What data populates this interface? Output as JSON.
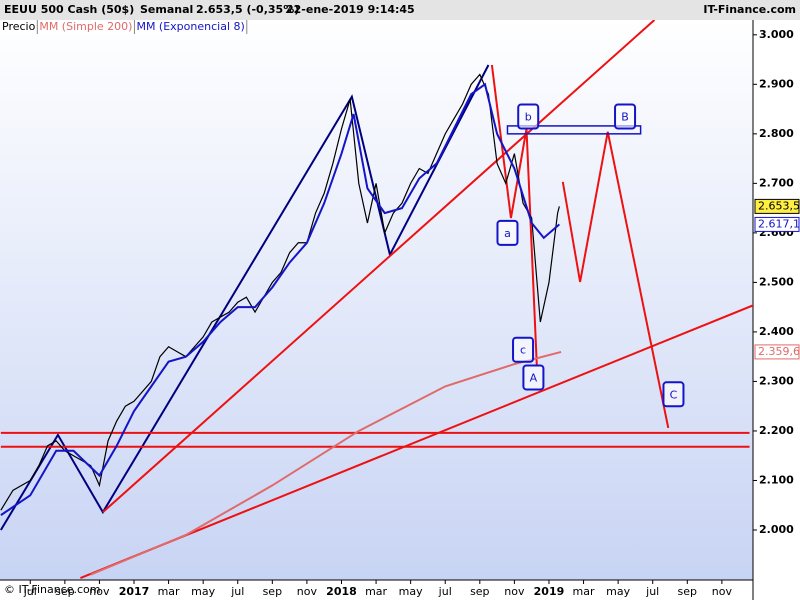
{
  "chart_data": {
    "type": "line",
    "title": "EEUU 500 Cash (50$)",
    "period": "Semanal",
    "quote": "2.653,5 (-0,35%)",
    "timestamp": "22-ene-2019 9:14:45",
    "source": "IT-Finance.com",
    "watermark": "© IT-Finance.com",
    "xlim": [
      4.25,
      47.8
    ],
    "ylim": [
      1899,
      3040
    ],
    "xticks": [
      {
        "value": 6,
        "label": "jul"
      },
      {
        "value": 8,
        "label": "sep"
      },
      {
        "value": 10,
        "label": "nov"
      },
      {
        "value": 12,
        "label": "2017"
      },
      {
        "value": 14,
        "label": "mar"
      },
      {
        "value": 16,
        "label": "may"
      },
      {
        "value": 18,
        "label": "jul"
      },
      {
        "value": 20,
        "label": "sep"
      },
      {
        "value": 22,
        "label": "nov"
      },
      {
        "value": 24,
        "label": "2018"
      },
      {
        "value": 26,
        "label": "mar"
      },
      {
        "value": 28,
        "label": "may"
      },
      {
        "value": 30,
        "label": "jul"
      },
      {
        "value": 32,
        "label": "sep"
      },
      {
        "value": 34,
        "label": "nov"
      },
      {
        "value": 36,
        "label": "2019"
      },
      {
        "value": 38,
        "label": "mar"
      },
      {
        "value": 40,
        "label": "may"
      },
      {
        "value": 42,
        "label": "jul"
      },
      {
        "value": 44,
        "label": "sep"
      },
      {
        "value": 46,
        "label": "nov"
      }
    ],
    "yticks": [
      {
        "value": 2000,
        "label": "2.000"
      },
      {
        "value": 2100,
        "label": "2.100"
      },
      {
        "value": 2200,
        "label": "2.200"
      },
      {
        "value": 2300,
        "label": "2.300"
      },
      {
        "value": 2400,
        "label": "2.400"
      },
      {
        "value": 2500,
        "label": "2.500"
      },
      {
        "value": 2600,
        "label": "2.600"
      },
      {
        "value": 2700,
        "label": "2.700"
      },
      {
        "value": 2800,
        "label": "2.800"
      },
      {
        "value": 2900,
        "label": "2.900"
      },
      {
        "value": 3000,
        "label": "3.000"
      }
    ],
    "series": [
      {
        "name": "Precio",
        "color": "#000000",
        "x": [
          4.3,
          5,
          6,
          6.5,
          7,
          7.5,
          8,
          8.5,
          9,
          9.5,
          10,
          10.5,
          11,
          11.5,
          12,
          12.5,
          13,
          13.5,
          14,
          14.5,
          15,
          15.5,
          16,
          16.5,
          17,
          17.5,
          18,
          18.5,
          19,
          19.5,
          20,
          20.5,
          21,
          21.5,
          22,
          22.5,
          23,
          23.5,
          24,
          24.5,
          25,
          25.5,
          26,
          26.5,
          27,
          27.5,
          28,
          28.5,
          29,
          29.5,
          30,
          30.5,
          31,
          31.5,
          32,
          32.5,
          33,
          33.5,
          34,
          34.5,
          35,
          35.5,
          36,
          36.5,
          36.6
        ],
        "values": [
          2040,
          2080,
          2100,
          2130,
          2170,
          2180,
          2160,
          2150,
          2140,
          2130,
          2090,
          2180,
          2220,
          2250,
          2260,
          2280,
          2300,
          2350,
          2370,
          2360,
          2350,
          2370,
          2390,
          2420,
          2430,
          2440,
          2460,
          2470,
          2440,
          2470,
          2500,
          2520,
          2560,
          2580,
          2580,
          2640,
          2680,
          2740,
          2810,
          2870,
          2700,
          2620,
          2700,
          2600,
          2640,
          2660,
          2700,
          2730,
          2720,
          2760,
          2800,
          2830,
          2860,
          2900,
          2920,
          2880,
          2740,
          2700,
          2760,
          2660,
          2630,
          2420,
          2500,
          2640,
          2653.5
        ]
      },
      {
        "name": "MM (Simple 200)",
        "color": "#e06a6a",
        "x": [
          9.5,
          15,
          20,
          25,
          30,
          34,
          36.7
        ],
        "values": [
          1910,
          1990,
          2090,
          2200,
          2290,
          2335,
          2359.6
        ]
      },
      {
        "name": "MM (Exponencial 8)",
        "color": "#1414c8",
        "x": [
          4.3,
          6,
          7.5,
          8.5,
          10,
          11,
          12,
          13,
          14,
          15,
          16,
          17,
          18,
          19,
          20,
          21,
          22,
          23,
          24,
          24.7,
          25.5,
          26.5,
          27.5,
          28.5,
          29.5,
          30.5,
          31.5,
          32.3,
          33,
          34,
          35,
          35.7,
          36.6
        ],
        "values": [
          2030,
          2070,
          2160,
          2160,
          2110,
          2170,
          2240,
          2290,
          2340,
          2350,
          2380,
          2420,
          2450,
          2450,
          2490,
          2540,
          2580,
          2660,
          2760,
          2840,
          2690,
          2640,
          2650,
          2710,
          2740,
          2810,
          2880,
          2900,
          2800,
          2730,
          2620,
          2590,
          2617.1
        ]
      }
    ],
    "last_labels": [
      {
        "value": 2653.5,
        "label": "2.653,5",
        "color": "#000000",
        "background": "#ffee44"
      },
      {
        "value": 2617.1,
        "label": "2.617,1",
        "color": "#1414c8",
        "background": "#ffffff"
      },
      {
        "value": 2359.6,
        "label": "2.359,6",
        "color": "#e06a6a",
        "background": "#ffffff"
      }
    ],
    "annotations": {
      "lines": [
        {
          "color": "#000080",
          "points": [
            [
              4.3,
              2000
            ],
            [
              7.6,
              2192
            ],
            [
              10.2,
              2036
            ],
            [
              24.6,
              2875
            ],
            [
              26.8,
              2556
            ],
            [
              32.5,
              2939
            ]
          ]
        },
        {
          "color": "#ee1111",
          "points": [
            [
              8.9,
              1903
            ],
            [
              47.9,
              2455
            ]
          ]
        },
        {
          "color": "#ee1111",
          "points": [
            [
              10.2,
              2036
            ],
            [
              42.1,
              3030
            ]
          ]
        },
        {
          "color": "#ee1111",
          "points": [
            [
              4.3,
              2196
            ],
            [
              47.6,
              2196
            ]
          ]
        },
        {
          "color": "#ee1111",
          "points": [
            [
              4.3,
              2168
            ],
            [
              47.6,
              2168
            ]
          ]
        },
        {
          "color": "#ee1111",
          "points": [
            [
              32.7,
              2939
            ],
            [
              33.8,
              2630
            ],
            [
              34.7,
              2810
            ],
            [
              35.3,
              2330
            ]
          ]
        },
        {
          "color": "#ee1111",
          "points": [
            [
              36.8,
              2703
            ],
            [
              37.8,
              2501
            ],
            [
              39.4,
              2804
            ],
            [
              42.9,
              2206
            ]
          ]
        }
      ],
      "boxes": [
        {
          "color": "#1414c8",
          "x0": 33.6,
          "x1": 41.3,
          "y0": 2800,
          "y1": 2816
        }
      ],
      "labels": [
        {
          "text": "b",
          "x": 34.8,
          "y": 2835
        },
        {
          "text": "B",
          "x": 40.4,
          "y": 2835
        },
        {
          "text": "a",
          "x": 33.6,
          "y": 2600
        },
        {
          "text": "c",
          "x": 34.5,
          "y": 2364
        },
        {
          "text": "A",
          "x": 35.1,
          "y": 2308
        },
        {
          "text": "C",
          "x": 43.2,
          "y": 2274
        }
      ]
    }
  }
}
